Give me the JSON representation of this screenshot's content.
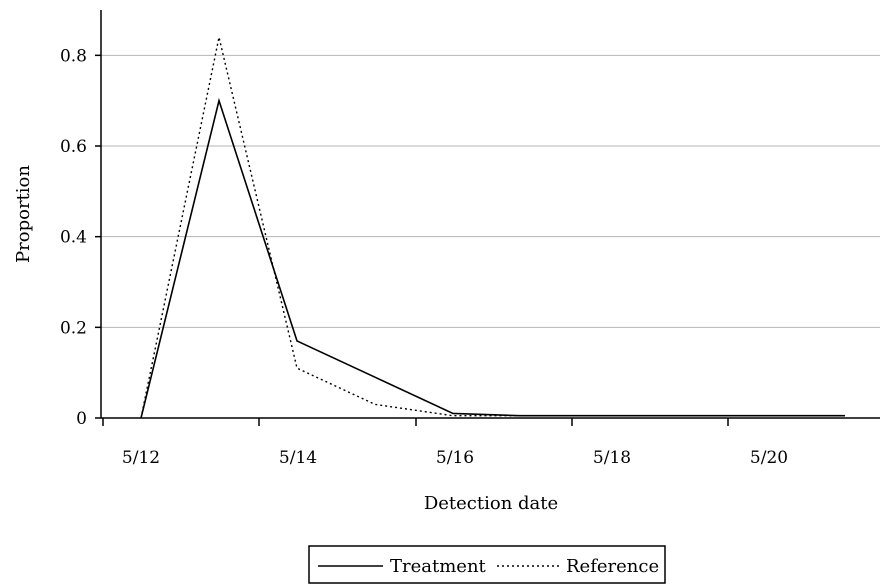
{
  "chart_data": {
    "type": "line",
    "xlabel": "Detection date",
    "ylabel": "Proportion",
    "x_tick_labels": [
      "5/12",
      "5/14",
      "5/16",
      "5/18",
      "5/20"
    ],
    "y_tick_labels": [
      "0",
      "0.2",
      "0.4",
      "0.6",
      "0.8"
    ],
    "y_ticks": [
      0,
      0.2,
      0.4,
      0.6,
      0.8
    ],
    "ylim": [
      0,
      0.9
    ],
    "grid": "horizontal",
    "legend_position": "bottom-center",
    "x": [
      "5/12",
      "5/13",
      "5/14",
      "5/15",
      "5/16",
      "5/17",
      "5/18",
      "5/19",
      "5/20",
      "5/21"
    ],
    "series": [
      {
        "name": "Treatment",
        "style": "solid",
        "color": "#000000",
        "values": [
          0.0,
          0.7,
          0.17,
          0.09,
          0.01,
          0.005,
          0.005,
          0.005,
          0.005,
          0.005
        ]
      },
      {
        "name": "Reference",
        "style": "dotted",
        "color": "#000000",
        "values": [
          0.0,
          0.84,
          0.11,
          0.03,
          0.005,
          0.005,
          0.005,
          0.005,
          0.005,
          0.005
        ]
      }
    ]
  }
}
